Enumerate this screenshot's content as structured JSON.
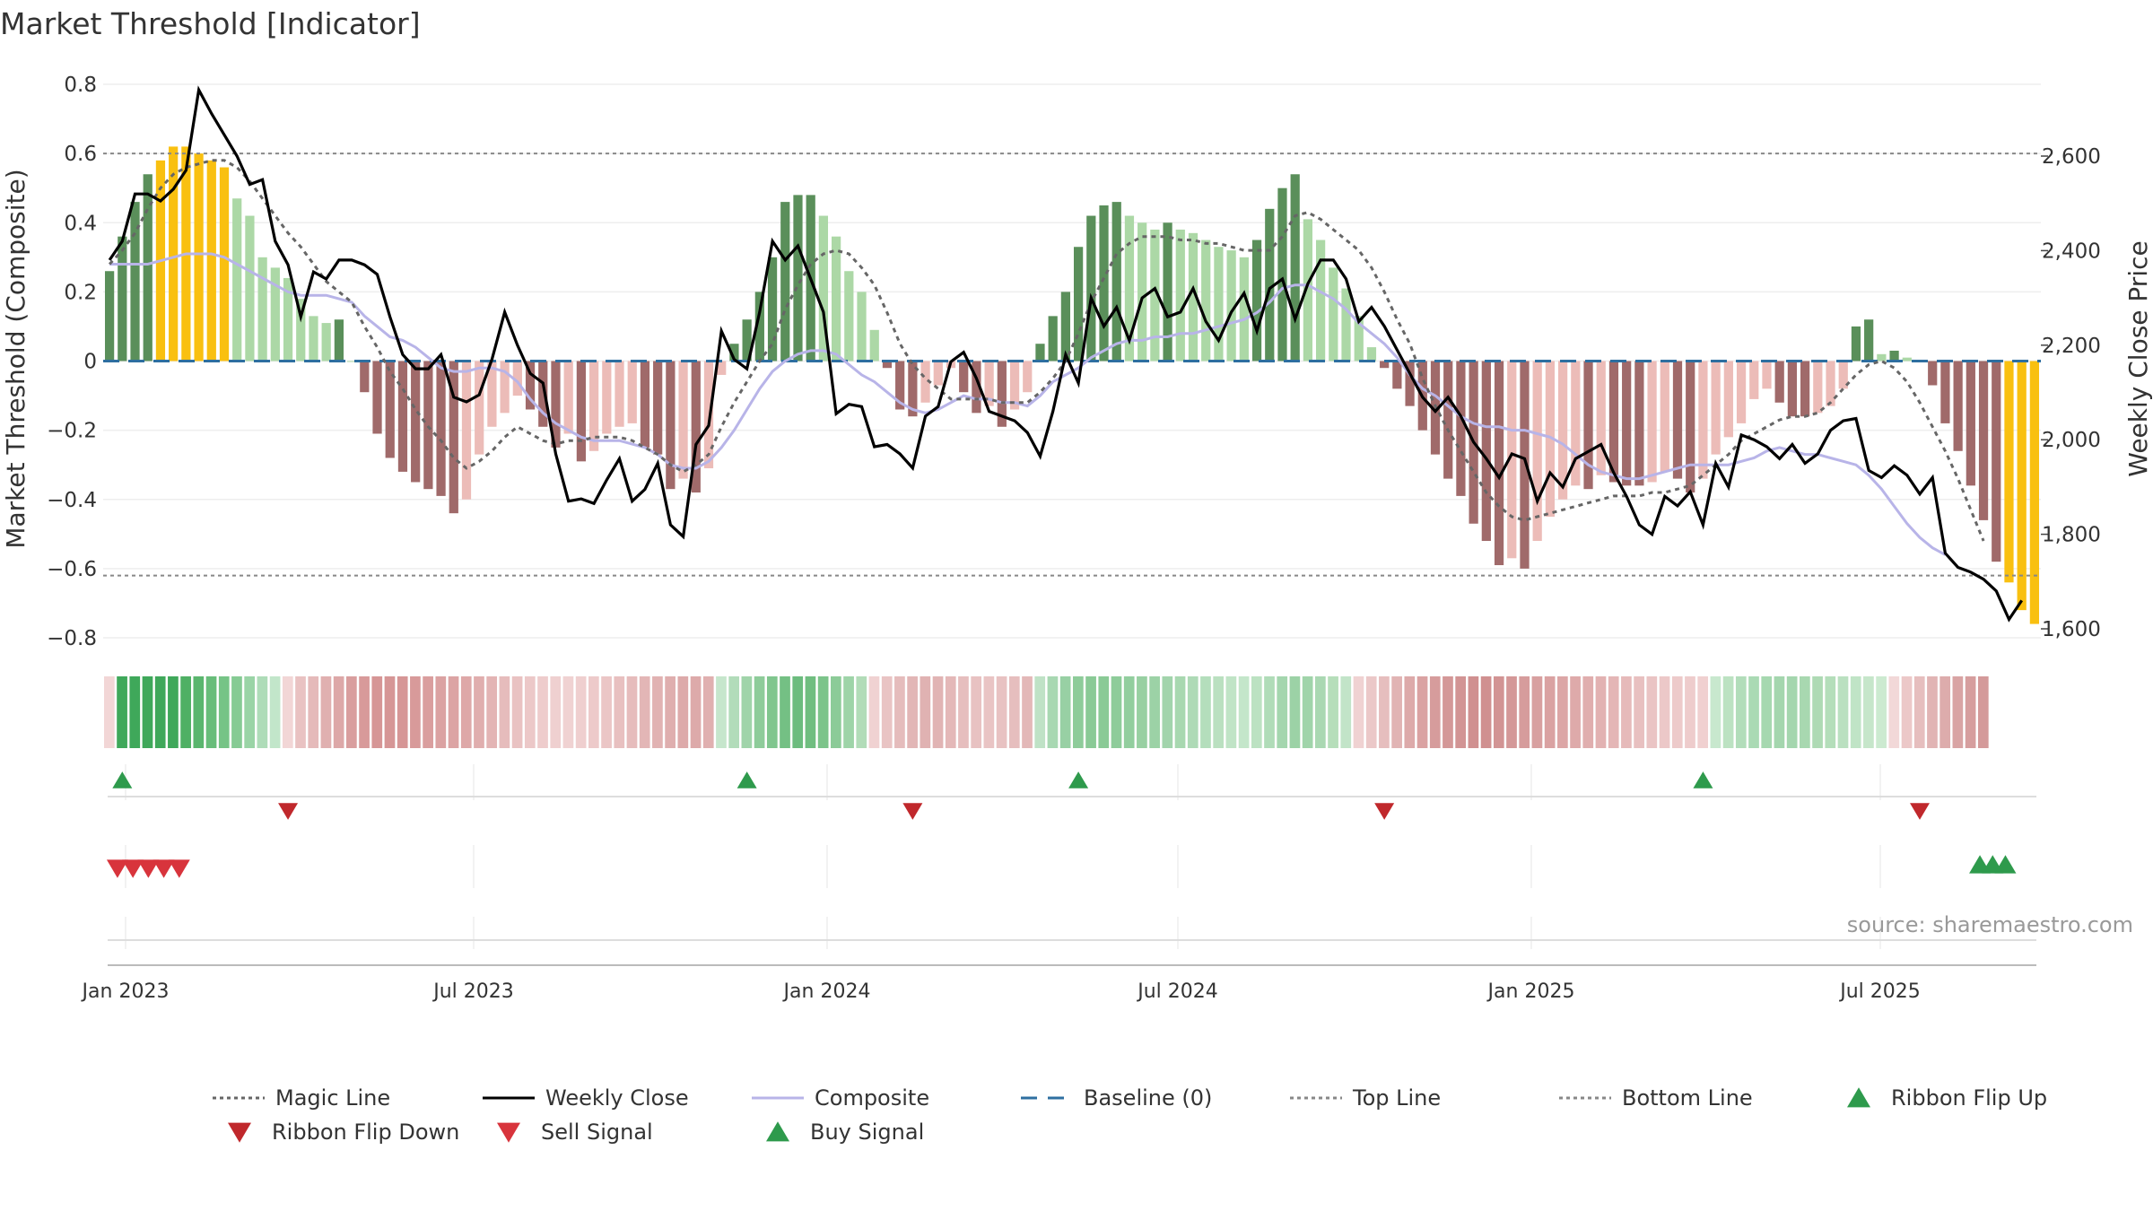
{
  "chart_data": {
    "type": "bar",
    "title": "Market Threshold [Indicator]",
    "ylabel": "Market Threshold (Composite)",
    "y2label": "Weekly Close Price",
    "ylim": [
      -0.85,
      0.85
    ],
    "y2lim": [
      1560,
      2770
    ],
    "yticks": [
      "0.8",
      "0.6",
      "0.4",
      "0.2",
      "0",
      "−0.2",
      "−0.4",
      "−0.6",
      "−0.8"
    ],
    "yticks_values": [
      0.8,
      0.6,
      0.4,
      0.2,
      0,
      -0.2,
      -0.4,
      -0.6,
      -0.8
    ],
    "y2ticks": [
      "2,600",
      "2,400",
      "2,200",
      "2,000",
      "1,800",
      "1,600"
    ],
    "y2ticks_values": [
      2600,
      2400,
      2200,
      2000,
      1800,
      1600
    ],
    "xticks": [
      "Jan 2023",
      "Jul 2023",
      "Jan 2024",
      "Jul 2024",
      "Jan 2025",
      "Jul 2025"
    ],
    "top_line": 0.6,
    "bottom_line": -0.62,
    "grid": true,
    "legend_position": "bottom",
    "source": "source: sharemaestro.com",
    "colors": {
      "strong_pos": "#5a8f5a",
      "weak_pos": "#acd8a6",
      "strong_neg": "#a06a6a",
      "weak_neg": "#ecbcb8",
      "extreme": "#f9c010",
      "weekly_close": "#000000",
      "magic_line": "#666666",
      "composite": "#b8b4e8",
      "baseline": "#2e6fa0",
      "threshold": "#888888",
      "flip_up": "#2e9a4c",
      "flip_down": "#c0282c",
      "sell": "#d8343c",
      "buy": "#2e9a4c"
    },
    "composite_bars": [
      0.26,
      0.36,
      0.46,
      0.54,
      0.58,
      0.62,
      0.62,
      0.6,
      0.58,
      0.56,
      0.47,
      0.42,
      0.3,
      0.27,
      0.24,
      0.18,
      0.13,
      0.11,
      0.12,
      0,
      -0.09,
      -0.21,
      -0.28,
      -0.32,
      -0.35,
      -0.37,
      -0.39,
      -0.44,
      -0.4,
      -0.27,
      -0.19,
      -0.15,
      -0.1,
      -0.14,
      -0.19,
      -0.25,
      -0.21,
      -0.29,
      -0.26,
      -0.21,
      -0.19,
      -0.18,
      -0.25,
      -0.27,
      -0.37,
      -0.34,
      -0.38,
      -0.31,
      -0.04,
      0.05,
      0.12,
      0.2,
      0.3,
      0.46,
      0.48,
      0.48,
      0.42,
      0.36,
      0.26,
      0.2,
      0.09,
      -0.02,
      -0.14,
      -0.16,
      -0.12,
      -0.07,
      -0.02,
      -0.09,
      -0.15,
      -0.13,
      -0.19,
      -0.14,
      -0.09,
      0.05,
      0.13,
      0.2,
      0.33,
      0.42,
      0.45,
      0.46,
      0.42,
      0.4,
      0.38,
      0.4,
      0.38,
      0.37,
      0.35,
      0.33,
      0.32,
      0.3,
      0.35,
      0.44,
      0.5,
      0.54,
      0.41,
      0.35,
      0.27,
      0.21,
      0.13,
      0.04,
      -0.02,
      -0.08,
      -0.13,
      -0.2,
      -0.27,
      -0.34,
      -0.39,
      -0.47,
      -0.52,
      -0.59,
      -0.57,
      -0.6,
      -0.52,
      -0.45,
      -0.4,
      -0.36,
      -0.37,
      -0.33,
      -0.35,
      -0.36,
      -0.36,
      -0.35,
      -0.32,
      -0.34,
      -0.38,
      -0.34,
      -0.27,
      -0.22,
      -0.18,
      -0.11,
      -0.08,
      -0.12,
      -0.16,
      -0.16,
      -0.15,
      -0.13,
      -0.08,
      0.1,
      0.12,
      0.02,
      0.03,
      0.01,
      0,
      -0.07,
      -0.18,
      -0.26,
      -0.36,
      -0.46,
      -0.58,
      -0.64,
      -0.72,
      -0.76
    ],
    "weekly_close": [
      2380,
      2420,
      2520,
      2520,
      2505,
      2530,
      2570,
      2740,
      2690,
      2645,
      2600,
      2540,
      2550,
      2420,
      2370,
      2260,
      2355,
      2340,
      2380,
      2380,
      2370,
      2350,
      2260,
      2180,
      2150,
      2150,
      2180,
      2090,
      2080,
      2095,
      2170,
      2270,
      2200,
      2140,
      2120,
      1970,
      1870,
      1875,
      1865,
      1915,
      1960,
      1870,
      1895,
      1950,
      1820,
      1795,
      1990,
      2030,
      2230,
      2170,
      2150,
      2270,
      2420,
      2380,
      2410,
      2340,
      2270,
      2055,
      2075,
      2070,
      1985,
      1990,
      1970,
      1940,
      2050,
      2070,
      2165,
      2185,
      2130,
      2060,
      2050,
      2040,
      2015,
      1965,
      2060,
      2180,
      2120,
      2300,
      2240,
      2280,
      2210,
      2300,
      2320,
      2260,
      2270,
      2320,
      2250,
      2210,
      2270,
      2310,
      2230,
      2320,
      2340,
      2255,
      2330,
      2380,
      2380,
      2340,
      2250,
      2280,
      2240,
      2190,
      2140,
      2090,
      2060,
      2090,
      2050,
      1995,
      1960,
      1920,
      1970,
      1960,
      1870,
      1930,
      1900,
      1960,
      1975,
      1990,
      1930,
      1880,
      1820,
      1800,
      1880,
      1860,
      1890,
      1820,
      1950,
      1900,
      2010,
      2000,
      1985,
      1960,
      1990,
      1950,
      1970,
      2020,
      2040,
      2045,
      1935,
      1920,
      1945,
      1925,
      1885,
      1920,
      1760,
      1730,
      1720,
      1705,
      1680,
      1620,
      1660
    ],
    "magic_line": [
      0.28,
      0.32,
      0.37,
      0.44,
      0.5,
      0.54,
      0.56,
      0.57,
      0.58,
      0.58,
      0.56,
      0.52,
      0.47,
      0.42,
      0.37,
      0.33,
      0.28,
      0.23,
      0.2,
      0.17,
      0.1,
      0.04,
      -0.03,
      -0.08,
      -0.14,
      -0.19,
      -0.23,
      -0.28,
      -0.31,
      -0.29,
      -0.26,
      -0.22,
      -0.19,
      -0.21,
      -0.23,
      -0.24,
      -0.23,
      -0.23,
      -0.22,
      -0.22,
      -0.22,
      -0.23,
      -0.25,
      -0.27,
      -0.3,
      -0.32,
      -0.3,
      -0.27,
      -0.19,
      -0.12,
      -0.06,
      0,
      0.05,
      0.15,
      0.22,
      0.28,
      0.31,
      0.32,
      0.31,
      0.27,
      0.22,
      0.14,
      0.05,
      -0.01,
      -0.05,
      -0.08,
      -0.11,
      -0.11,
      -0.11,
      -0.11,
      -0.12,
      -0.12,
      -0.12,
      -0.09,
      -0.05,
      0,
      0.08,
      0.17,
      0.24,
      0.31,
      0.34,
      0.36,
      0.36,
      0.36,
      0.35,
      0.35,
      0.34,
      0.34,
      0.33,
      0.32,
      0.32,
      0.32,
      0.36,
      0.42,
      0.43,
      0.41,
      0.38,
      0.35,
      0.32,
      0.27,
      0.2,
      0.12,
      0.05,
      -0.05,
      -0.13,
      -0.2,
      -0.26,
      -0.32,
      -0.38,
      -0.42,
      -0.45,
      -0.46,
      -0.45,
      -0.44,
      -0.43,
      -0.42,
      -0.41,
      -0.4,
      -0.39,
      -0.39,
      -0.39,
      -0.38,
      -0.38,
      -0.37,
      -0.36,
      -0.33,
      -0.3,
      -0.27,
      -0.23,
      -0.21,
      -0.19,
      -0.17,
      -0.16,
      -0.16,
      -0.15,
      -0.12,
      -0.08,
      -0.04,
      -0.01,
      0,
      -0.02,
      -0.06,
      -0.12,
      -0.19,
      -0.26,
      -0.34,
      -0.43,
      -0.52
    ],
    "composite_smooth": [
      0.28,
      0.28,
      0.28,
      0.28,
      0.29,
      0.3,
      0.31,
      0.31,
      0.31,
      0.3,
      0.28,
      0.26,
      0.24,
      0.22,
      0.2,
      0.19,
      0.19,
      0.19,
      0.18,
      0.17,
      0.13,
      0.1,
      0.07,
      0.06,
      0.04,
      0.01,
      -0.02,
      -0.03,
      -0.03,
      -0.02,
      -0.02,
      -0.03,
      -0.06,
      -0.11,
      -0.15,
      -0.18,
      -0.2,
      -0.22,
      -0.23,
      -0.23,
      -0.23,
      -0.24,
      -0.25,
      -0.27,
      -0.3,
      -0.31,
      -0.31,
      -0.29,
      -0.25,
      -0.2,
      -0.14,
      -0.08,
      -0.03,
      0,
      0.02,
      0.03,
      0.03,
      0.02,
      -0.01,
      -0.04,
      -0.06,
      -0.09,
      -0.12,
      -0.14,
      -0.15,
      -0.14,
      -0.12,
      -0.1,
      -0.11,
      -0.11,
      -0.12,
      -0.12,
      -0.13,
      -0.1,
      -0.06,
      -0.04,
      -0.02,
      0.01,
      0.03,
      0.05,
      0.06,
      0.06,
      0.07,
      0.07,
      0.08,
      0.08,
      0.09,
      0.1,
      0.11,
      0.12,
      0.14,
      0.17,
      0.21,
      0.22,
      0.22,
      0.2,
      0.18,
      0.15,
      0.11,
      0.08,
      0.05,
      0.01,
      -0.04,
      -0.08,
      -0.1,
      -0.13,
      -0.16,
      -0.18,
      -0.19,
      -0.19,
      -0.2,
      -0.2,
      -0.21,
      -0.22,
      -0.24,
      -0.27,
      -0.3,
      -0.32,
      -0.33,
      -0.34,
      -0.34,
      -0.33,
      -0.32,
      -0.31,
      -0.3,
      -0.3,
      -0.3,
      -0.3,
      -0.29,
      -0.28,
      -0.26,
      -0.25,
      -0.26,
      -0.27,
      -0.27,
      -0.28,
      -0.29,
      -0.3,
      -0.33,
      -0.37,
      -0.42,
      -0.47,
      -0.51,
      -0.54,
      -0.56
    ],
    "ribbon_colors": [
      "#f2d6d6",
      "#3fa85a",
      "#3fa85a",
      "#3fa85a",
      "#3fa85a",
      "#3fa85a",
      "#4fb064",
      "#5ab66e",
      "#68bd7a",
      "#76c486",
      "#86cb94",
      "#9ad4a6",
      "#aedcb8",
      "#c2e6ca",
      "#f2d6d6",
      "#e9c2c2",
      "#e5baba",
      "#e0b0b0",
      "#dda8a8",
      "#d99e9e",
      "#d89a9a",
      "#d69696",
      "#d69696",
      "#d69696",
      "#d89a9a",
      "#da9e9e",
      "#dba2a2",
      "#dca4a4",
      "#dea8a8",
      "#e0aeae",
      "#e3b4b4",
      "#e6bcbc",
      "#e9c2c2",
      "#ecc8c8",
      "#eecccc",
      "#efd0d0",
      "#f0d2d2",
      "#efcfcf",
      "#edcaca",
      "#ebc6c6",
      "#e8c0c0",
      "#e6bcbc",
      "#e3b6b6",
      "#e1b2b2",
      "#dfaeae",
      "#ddaaaa",
      "#ddaaaa",
      "#e0b0b0",
      "#c6e6cc",
      "#b2dcba",
      "#a0d4aa",
      "#8ecc9a",
      "#80c68e",
      "#74c084",
      "#6cbc7e",
      "#70be80",
      "#7cc48a",
      "#8ccb98",
      "#9ed4a8",
      "#b2dcb8",
      "#f0d2d2",
      "#e9c4c4",
      "#e5bcbc",
      "#e2b6b6",
      "#e0b2b2",
      "#e1b4b4",
      "#e4b8b8",
      "#e6bebe",
      "#e8c2c2",
      "#e9c4c4",
      "#e8c2c2",
      "#e6bebe",
      "#e3b8b8",
      "#bfe2c6",
      "#a8d8b2",
      "#98d0a4",
      "#8ecc9a",
      "#8aca96",
      "#8aca96",
      "#8ecc9a",
      "#92ce9e",
      "#98d0a2",
      "#9cd2a6",
      "#a2d4ac",
      "#a8d8b0",
      "#aedab6",
      "#b4debc",
      "#bae0c0",
      "#c0e4c6",
      "#c4e6ca",
      "#bce2c2",
      "#b0dcb8",
      "#a4d6ae",
      "#9cd2a6",
      "#a0d4aa",
      "#aad8b2",
      "#b6deba",
      "#c2e4c8",
      "#f0d2d2",
      "#ebc8c8",
      "#e6bebe",
      "#e1b4b4",
      "#ddaaaa",
      "#daa2a2",
      "#d69c9c",
      "#d49898",
      "#d29494",
      "#d09090",
      "#d09090",
      "#d29494",
      "#d49898",
      "#d69c9c",
      "#d8a0a0",
      "#daa2a2",
      "#dca6a6",
      "#deaaaa",
      "#e0aeae",
      "#e2b2b2",
      "#e4b6b6",
      "#e6baba",
      "#e8c0c0",
      "#eac4c4",
      "#ecc8c8",
      "#edcaca",
      "#eecccc",
      "#f0d0d0",
      "#c8e8ce",
      "#bce2c2",
      "#b2ddba",
      "#aadab4",
      "#a6d8b0",
      "#a4d6ae",
      "#a4d6ae",
      "#a8d8b0",
      "#aedab4",
      "#b4deba",
      "#bae0c0",
      "#c0e4c6",
      "#c6e6ca",
      "#ccead0",
      "#f2d8d8",
      "#ecc8c8",
      "#e6bebe",
      "#e1b4b4",
      "#ddacac",
      "#d9a4a4",
      "#d69e9e",
      "#d49a9a"
    ],
    "ribbon_flip_up_idx": [
      1,
      50,
      76,
      125
    ],
    "ribbon_flip_down_idx": [
      14,
      63,
      100,
      142
    ],
    "sell_signal_idx": [
      4,
      5,
      6,
      7,
      8
    ],
    "buy_signal_idx": [
      147,
      148,
      149
    ],
    "legend": [
      "Magic Line",
      "Weekly Close",
      "Composite",
      "Baseline (0)",
      "Top Line",
      "Bottom Line",
      "Ribbon Flip Up",
      "Ribbon Flip Down",
      "Sell Signal",
      "Buy Signal"
    ]
  }
}
